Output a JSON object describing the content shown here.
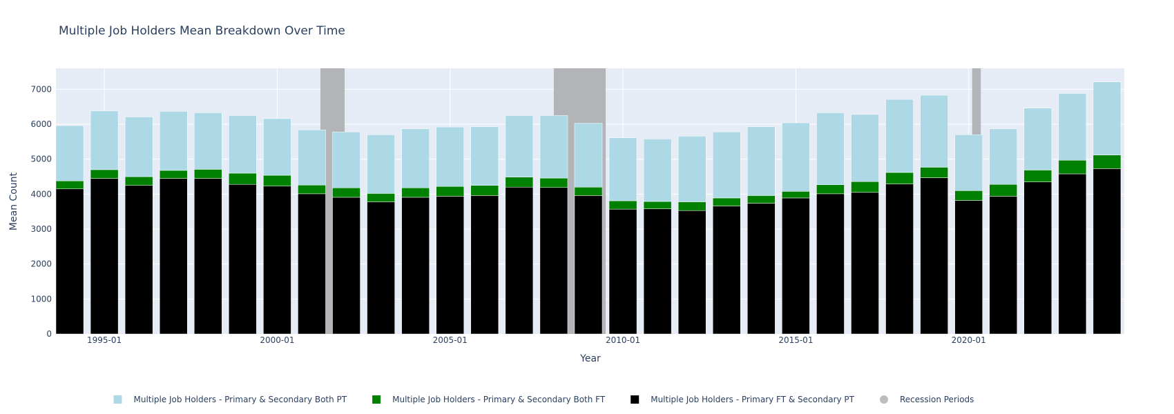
{
  "chart_data": {
    "type": "bar",
    "barmode": "stack",
    "title": "Multiple Job Holders Mean Breakdown Over Time",
    "xlabel": "Year",
    "ylabel": "Mean Count",
    "ylim": [
      0,
      7600
    ],
    "yticks": [
      0,
      1000,
      2000,
      3000,
      4000,
      5000,
      6000,
      7000
    ],
    "xlim": [
      1993.6,
      2024.5
    ],
    "xticks": [
      {
        "value": 1995,
        "label": "1995-01"
      },
      {
        "value": 2000,
        "label": "2000-01"
      },
      {
        "value": 2005,
        "label": "2005-01"
      },
      {
        "value": 2010,
        "label": "2010-01"
      },
      {
        "value": 2015,
        "label": "2015-01"
      },
      {
        "value": 2020,
        "label": "2020-01"
      }
    ],
    "x": [
      1994,
      1995,
      1996,
      1997,
      1998,
      1999,
      2000,
      2001,
      2002,
      2003,
      2004,
      2005,
      2006,
      2007,
      2008,
      2009,
      2010,
      2011,
      2012,
      2013,
      2014,
      2015,
      2016,
      2017,
      2018,
      2019,
      2020,
      2021,
      2022,
      2023,
      2024
    ],
    "series": [
      {
        "name": "Multiple Job Holders - Primary FT & Secondary PT",
        "color": "#000000",
        "values": [
          4150,
          4450,
          4250,
          4450,
          4450,
          4280,
          4230,
          4010,
          3910,
          3780,
          3910,
          3940,
          3960,
          4200,
          4190,
          3960,
          3570,
          3580,
          3530,
          3660,
          3740,
          3890,
          4010,
          4050,
          4290,
          4470,
          3820,
          3940,
          4350,
          4580,
          4730
        ]
      },
      {
        "name": "Multiple Job Holders - Primary & Secondary Both FT",
        "color": "#008000",
        "values": [
          230,
          250,
          250,
          230,
          260,
          320,
          310,
          250,
          270,
          240,
          270,
          280,
          290,
          290,
          270,
          240,
          240,
          210,
          250,
          230,
          220,
          190,
          260,
          310,
          330,
          300,
          280,
          340,
          340,
          390,
          390
        ]
      },
      {
        "name": "Multiple Job Holders - Primary & Secondary Both PT",
        "color": "#add8e6",
        "values": [
          1580,
          1680,
          1710,
          1690,
          1620,
          1650,
          1620,
          1580,
          1600,
          1680,
          1690,
          1700,
          1680,
          1760,
          1790,
          1830,
          1800,
          1790,
          1880,
          1890,
          1970,
          1960,
          2060,
          1920,
          2090,
          2060,
          1600,
          1590,
          1770,
          1910,
          2090
        ]
      }
    ],
    "recessions": [
      {
        "start": 2001.25,
        "end": 2001.95
      },
      {
        "start": 2008.0,
        "end": 2009.5
      },
      {
        "start": 2020.1,
        "end": 2020.35
      }
    ],
    "recession_color": "#b2b4b8",
    "legend": {
      "placement": "bottom-center",
      "items": [
        {
          "label": "Multiple Job Holders - Primary & Secondary Both PT",
          "color": "#add8e6",
          "symbol": "square"
        },
        {
          "label": "Multiple Job Holders - Primary & Secondary Both FT",
          "color": "#008000",
          "symbol": "square"
        },
        {
          "label": "Multiple Job Holders - Primary FT & Secondary PT",
          "color": "#000000",
          "symbol": "square"
        },
        {
          "label": "Recession Periods",
          "color": "#bdbdbd",
          "symbol": "circle"
        }
      ]
    },
    "grid": true,
    "plot_bgcolor": "#e5ecf6"
  }
}
